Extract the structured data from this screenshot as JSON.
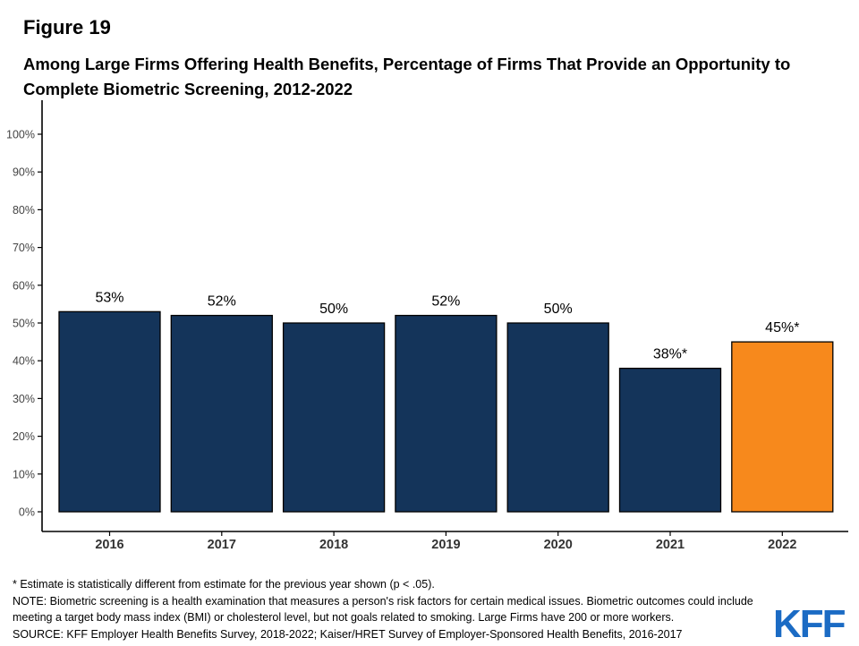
{
  "figure_label": "Figure 19",
  "colors": {
    "bar": "#14345a",
    "highlight": "#f7891c",
    "outline": "#000000"
  },
  "chart_data": {
    "type": "bar",
    "title": "Among Large Firms Offering Health Benefits, Percentage of Firms That Provide an Opportunity to Complete Biometric Screening, 2012-2022",
    "xlabel": "",
    "ylabel": "",
    "ylim": [
      0,
      100
    ],
    "ytick_labels": [
      "0%",
      "10%",
      "20%",
      "30%",
      "40%",
      "50%",
      "60%",
      "70%",
      "80%",
      "90%",
      "100%"
    ],
    "categories": [
      "2016",
      "2017",
      "2018",
      "2019",
      "2020",
      "2021",
      "2022"
    ],
    "values": [
      53,
      52,
      50,
      52,
      50,
      38,
      45
    ],
    "value_labels": [
      "53%",
      "52%",
      "50%",
      "52%",
      "50%",
      "38%*",
      "45%*"
    ],
    "highlight_category": "2022",
    "grid": false
  },
  "notes": [
    "* Estimate is statistically different from estimate for the previous year shown (p < .05).",
    "NOTE: Biometric screening is a health examination that measures a person's risk factors for certain medical issues. Biometric outcomes could include",
    "meeting a target body mass index (BMI) or cholesterol level, but not goals related to smoking. Large Firms have 200 or more workers.",
    "SOURCE: KFF Employer Health Benefits Survey, 2018-2022; Kaiser/HRET Survey of Employer-Sponsored Health Benefits, 2016-2017"
  ],
  "logo_text": "KFF"
}
